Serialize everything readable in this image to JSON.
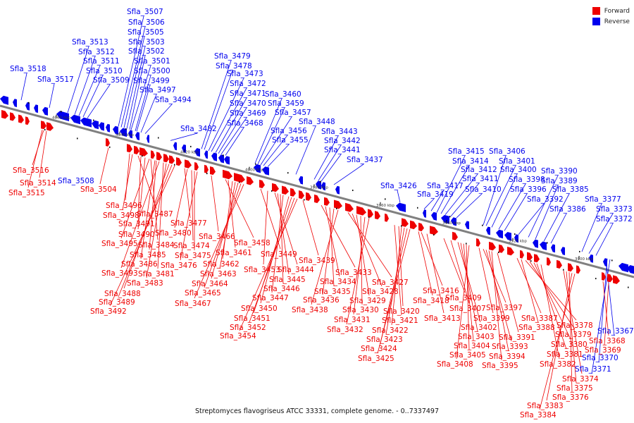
{
  "caption": "Streptomyces flavogriseus ATCC 33331, complete genome. - 0..7337497",
  "legend": [
    {
      "label": "Forward",
      "color": "#ee0000"
    },
    {
      "label": "Reverse",
      "color": "#0000ee"
    }
  ],
  "colors": {
    "forward": "#ee0000",
    "reverse": "#0000ee",
    "axis": "#808080"
  },
  "ticks": [
    "4060 kbp",
    "4040 kbp",
    "4020 kbp",
    "4000 kbp",
    "3980 kbp",
    "3960 kbp",
    "3940 kbp",
    "3920 kbp",
    "3900 kbp"
  ],
  "labels_reverse": [
    "Sfla_3518",
    "Sfla_3517",
    "Sfla_3513",
    "Sfla_3512",
    "Sfla_3511",
    "Sfla_3510",
    "Sfla_3509",
    "Sfla_3507",
    "Sfla_3506",
    "Sfla_3505",
    "Sfla_3503",
    "Sfla_3502",
    "Sfla_3501",
    "Sfla_3500",
    "Sfla_3499",
    "Sfla_3497",
    "Sfla_3494",
    "Sfla_3508",
    "Sfla_3482",
    "Sfla_3479",
    "Sfla_3478",
    "Sfla_3473",
    "Sfla_3472",
    "Sfla_3471",
    "Sfla_3470",
    "Sfla_3469",
    "Sfla_3468",
    "Sfla_3460",
    "Sfla_3459",
    "Sfla_3457",
    "Sfla_3456",
    "Sfla_3455",
    "Sfla_3448",
    "Sfla_3443",
    "Sfla_3442",
    "Sfla_3441",
    "Sfla_3437",
    "Sfla_3426",
    "Sfla_3419",
    "Sfla_3417",
    "Sfla_3415",
    "Sfla_3414",
    "Sfla_3412",
    "Sfla_3411",
    "Sfla_3410",
    "Sfla_3406",
    "Sfla_3401",
    "Sfla_3400",
    "Sfla_3398",
    "Sfla_3396",
    "Sfla_3392",
    "Sfla_3390",
    "Sfla_3389",
    "Sfla_3385",
    "Sfla_3386",
    "Sfla_3377",
    "Sfla_3373",
    "Sfla_3372",
    "Sfla_3367",
    "Sfla_3370",
    "Sfla_3371"
  ],
  "labels_forward": [
    "Sfla_3516",
    "Sfla_3514",
    "Sfla_3515",
    "Sfla_3504",
    "Sfla_3496",
    "Sfla_3498",
    "Sfla_3487",
    "Sfla_3491",
    "Sfla_3490",
    "Sfla_3495",
    "Sfla_3484",
    "Sfla_3486",
    "Sfla_3485",
    "Sfla_3493",
    "Sfla_3481",
    "Sfla_3483",
    "Sfla_3488",
    "Sfla_3489",
    "Sfla_3492",
    "Sfla_3477",
    "Sfla_3480",
    "Sfla_3474",
    "Sfla_3475",
    "Sfla_3476",
    "Sfla_3466",
    "Sfla_3458",
    "Sfla_3461",
    "Sfla_3462",
    "Sfla_3463",
    "Sfla_3464",
    "Sfla_3465",
    "Sfla_3467",
    "Sfla_3449",
    "Sfla_3453",
    "Sfla_3444",
    "Sfla_3445",
    "Sfla_3446",
    "Sfla_3447",
    "Sfla_3450",
    "Sfla_3451",
    "Sfla_3452",
    "Sfla_3454",
    "Sfla_3439",
    "Sfla_3433",
    "Sfla_3434",
    "Sfla_3435",
    "Sfla_3436",
    "Sfla_3438",
    "Sfla_3427",
    "Sfla_3428",
    "Sfla_3429",
    "Sfla_3430",
    "Sfla_3431",
    "Sfla_3432",
    "Sfla_3421",
    "Sfla_3420",
    "Sfla_3422",
    "Sfla_3423",
    "Sfla_3424",
    "Sfla_3425",
    "Sfla_3418",
    "Sfla_3416",
    "Sfla_3413",
    "Sfla_3409",
    "Sfla_3407",
    "Sfla_3402",
    "Sfla_3403",
    "Sfla_3404",
    "Sfla_3405",
    "Sfla_3408",
    "Sfla_3399",
    "Sfla_3397",
    "Sfla_3393",
    "Sfla_3394",
    "Sfla_3395",
    "Sfla_3391",
    "Sfla_3387",
    "Sfla_3388",
    "Sfla_3378",
    "Sfla_3379",
    "Sfla_3380",
    "Sfla_3381",
    "Sfla_3382",
    "Sfla_3374",
    "Sfla_3375",
    "Sfla_3376",
    "Sfla_3383",
    "Sfla_3384",
    "Sfla_3368",
    "Sfla_3369"
  ]
}
